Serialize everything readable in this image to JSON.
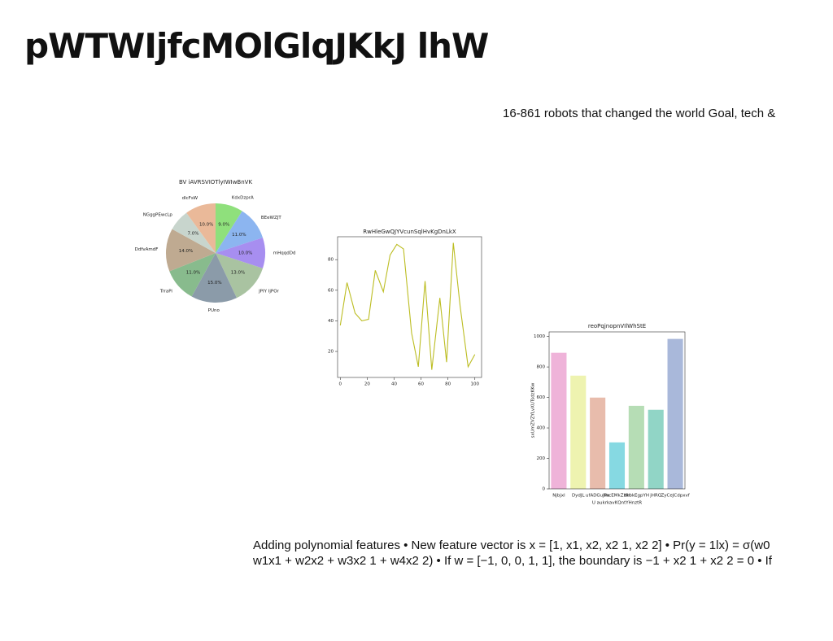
{
  "header": {
    "title": "pWTWIjfcMOlGlqJKkJ lhW",
    "subtitle": "16-861 robots that changed the world Goal, tech &"
  },
  "body": {
    "lines": [
      "Adding polynomial features • New feature vector is x = [1, x1, x2, x2 1, x2 2] • Pr(y = 1lx) = σ(w0",
      "w1x1 + w2x2 + w3x2 1 + w4x2 2) • If w = [−1, 0, 0, 1, 1], the boundary is −1 + x2 1 + x2 2 = 0 • If"
    ]
  },
  "chart_data": [
    {
      "type": "pie",
      "title": "BV iAVRSVIOTlyIWIwBnVK",
      "categories": [
        "KdxDzprA",
        "BEeWZJT",
        "mHqqdDd",
        "JPIY IjPOr",
        "PUno",
        "TrraPi",
        "DdfvAmdF",
        "NGggPEwcLp",
        "dlcFsW"
      ],
      "values": [
        9,
        11,
        10,
        13,
        15,
        11,
        14,
        7,
        10
      ],
      "value_labels": [
        "9.0%",
        "11.0%",
        "10.0%",
        "13.0%",
        "15.0%",
        "11.0%",
        "14.0%",
        "7.0%",
        "10.0%"
      ],
      "colors": [
        "#8fe07c",
        "#8cb5f0",
        "#a78ef0",
        "#a9c3a1",
        "#8b9ba9",
        "#88bb8d",
        "#bfaa91",
        "#c8d5cd",
        "#eab999"
      ]
    },
    {
      "type": "line",
      "title": "RwHleGwQJYVcunSqlHvKgDnLkX",
      "x": [
        0,
        5,
        11,
        16,
        21,
        26,
        32,
        37,
        42,
        47,
        53,
        58,
        63,
        68,
        74,
        79,
        84,
        89,
        95,
        100
      ],
      "values": [
        37,
        65,
        45,
        40,
        41,
        73,
        59,
        83,
        90,
        87,
        32,
        10,
        66,
        8,
        55,
        13,
        91,
        50,
        10,
        18
      ],
      "color": "#bcbd22",
      "xlim": [
        -2,
        105
      ],
      "ylim": [
        3,
        95
      ],
      "xticks": [
        0,
        20,
        40,
        60,
        80,
        100
      ],
      "yticks": [
        20,
        40,
        60,
        80
      ]
    },
    {
      "type": "bar",
      "title": "reoPqjnopnVIlWhStE",
      "xlabel": "U aukrkavKQntYHnztR",
      "ylabel": "sxUmZVZYLvXUTsdzKKw",
      "categories": [
        "Njbjxl",
        "DydJL",
        "ufADGuJPa",
        "lwcEMkZHH",
        "dkbkEgpYH",
        "jHRQ",
        "ZyCeJCdpxvf"
      ],
      "values": [
        893,
        743,
        599,
        305,
        545,
        519,
        984
      ],
      "colors": [
        "#efb3d9",
        "#eef3b0",
        "#e8bcac",
        "#86d9e2",
        "#b6ddb5",
        "#91d5c6",
        "#a9b8da"
      ],
      "ylim": [
        0,
        1030
      ],
      "yticks": [
        0,
        200,
        400,
        600,
        800,
        1000
      ]
    }
  ]
}
